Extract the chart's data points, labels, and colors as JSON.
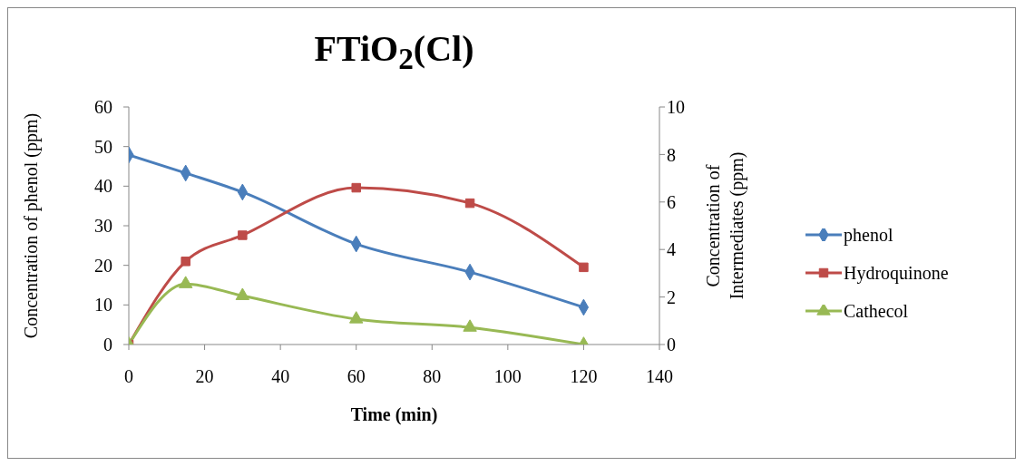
{
  "chart_data": {
    "type": "line",
    "title": "FTiO$_{2}$(Cl)",
    "xlabel": "Time (min)",
    "ylabel": "Concentration of phenol (ppm)",
    "y2label": "Concentration of Intermediates (ppm)",
    "x": [
      0,
      15,
      30,
      60,
      90,
      120
    ],
    "series": [
      {
        "name": "phenol",
        "color": "#4a7ebb",
        "values": [
          47.9,
          43.3,
          38.5,
          25.4,
          18.3,
          9.4
        ],
        "marker": "diamond"
      },
      {
        "name": "Hydroquinone",
        "color": "#be4b48",
        "values": [
          0,
          3.5,
          4.6,
          6.6,
          5.95,
          3.25
        ],
        "marker": "square",
        "axis": "y2"
      },
      {
        "name": "Cathecol",
        "color": "#98b954",
        "values": [
          0,
          2.55,
          2.05,
          1.07,
          0.72,
          0
        ],
        "marker": "triangle",
        "axis": "y2"
      }
    ],
    "xlim": [
      0,
      140
    ],
    "xticks": [
      0,
      20,
      40,
      60,
      80,
      100,
      120,
      140
    ],
    "ylim": [
      0,
      60
    ],
    "yticks": [
      0,
      10,
      20,
      30,
      40,
      50,
      60
    ],
    "y2lim": [
      0,
      10
    ],
    "y2ticks": [
      0,
      2,
      4,
      6,
      8,
      10
    ],
    "legend": "right",
    "grid": false,
    "line_style": "solid"
  }
}
